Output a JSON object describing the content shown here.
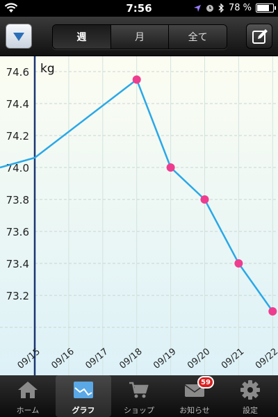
{
  "status_bar": {
    "time": "7:56",
    "battery": "78 %",
    "battery_level": 0.78
  },
  "nav": {
    "segments": [
      {
        "label": "週"
      },
      {
        "label": "月"
      },
      {
        "label": "全て"
      }
    ],
    "active_segment": 0
  },
  "chart_data": {
    "type": "line",
    "ylabel": "kg",
    "ylim": [
      73.0,
      74.7
    ],
    "y_ticks": [
      "74.6",
      "74.4",
      "74.2",
      "74.0",
      "73.8",
      "73.6",
      "73.4",
      "73.2"
    ],
    "x_ticks": [
      "09/15",
      "09/16",
      "09/17",
      "09/18",
      "09/19",
      "09/20",
      "09/21",
      "09/22"
    ],
    "series": [
      {
        "points": [
          {
            "x": "09/18",
            "y": 74.55
          },
          {
            "x": "09/19",
            "y": 74.0
          },
          {
            "x": "09/20",
            "y": 73.8
          },
          {
            "x": "09/21",
            "y": 73.4
          },
          {
            "x": "09/22",
            "y": 73.1
          }
        ],
        "color": "#29a8e8",
        "marker_color": "#ee3d8f"
      }
    ],
    "grid": true
  },
  "tabbar": {
    "items": [
      {
        "label": "ホーム",
        "icon": "home-icon"
      },
      {
        "label": "グラフ",
        "icon": "graph-icon"
      },
      {
        "label": "ショップ",
        "icon": "cart-icon"
      },
      {
        "label": "お知らせ",
        "icon": "mail-icon",
        "badge": "59"
      },
      {
        "label": "設定",
        "icon": "gear-icon"
      }
    ],
    "active": 1
  }
}
